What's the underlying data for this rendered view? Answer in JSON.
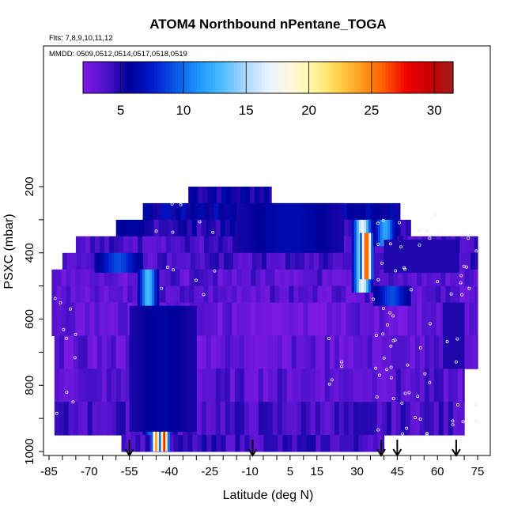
{
  "title": "ATOM4 Northbound nPentane_TOGA",
  "flights_label": "Flts: 7,8,9,10,11,12",
  "dates_label": "MMDD: 0509,0512,0514,0517,0518,0519",
  "chart_data": {
    "type": "heatmap",
    "xlabel": "Latitude (deg N)",
    "ylabel": "PSXC (mbar)",
    "x_ticks": [
      -85,
      -70,
      -55,
      -40,
      -25,
      -10,
      5,
      15,
      30,
      45,
      60,
      75
    ],
    "y_ticks": [
      200,
      400,
      600,
      800,
      1000
    ],
    "xlim": [
      -85,
      84
    ],
    "ylim": [
      1000,
      50
    ],
    "colorbar": {
      "ticks": [
        5,
        10,
        15,
        20,
        25,
        30
      ],
      "range": [
        2,
        31.5
      ],
      "colors": [
        "#7f1ae6",
        "#4f12cc",
        "#000099",
        "#0019cc",
        "#0a59e8",
        "#1e96ff",
        "#4dbbff",
        "#a8d8ff",
        "#e8f2ff",
        "#fffadc",
        "#fff5a0",
        "#ffd34d",
        "#ff9d1f",
        "#ff5d00",
        "#f00000",
        "#c80000",
        "#a01d1d"
      ]
    },
    "pressure_bands": [
      {
        "p": [
          200,
          250
        ],
        "lat": [
          -33,
          -2
        ],
        "value": 5.5
      },
      {
        "p": [
          250,
          300
        ],
        "lat": [
          -50,
          46
        ],
        "value": 6
      },
      {
        "p": [
          300,
          350
        ],
        "lat": [
          -60,
          50
        ],
        "value": 5
      },
      {
        "p": [
          350,
          400
        ],
        "lat": [
          -75,
          75
        ],
        "value": 4
      },
      {
        "p": [
          400,
          450
        ],
        "lat": [
          -80,
          75
        ],
        "value": 4
      },
      {
        "p": [
          450,
          500
        ],
        "lat": [
          -84,
          75
        ],
        "value": 3.5
      },
      {
        "p": [
          500,
          550
        ],
        "lat": [
          -84,
          75
        ],
        "value": 3.5
      },
      {
        "p": [
          550,
          650
        ],
        "lat": [
          -84,
          75
        ],
        "value": 3
      },
      {
        "p": [
          650,
          750
        ],
        "lat": [
          -83,
          75
        ],
        "value": 3.2
      },
      {
        "p": [
          750,
          850
        ],
        "lat": [
          -83,
          70
        ],
        "value": 3.5
      },
      {
        "p": [
          850,
          950
        ],
        "lat": [
          -83,
          70
        ],
        "value": 4
      },
      {
        "p": [
          950,
          1000
        ],
        "lat": [
          -58,
          40
        ],
        "value": 4.2
      }
    ],
    "features": [
      {
        "lat": [
          -68,
          -50
        ],
        "p": [
          400,
          460
        ],
        "value": 9
      },
      {
        "lat": [
          -52,
          -44
        ],
        "p": [
          450,
          560
        ],
        "value": 13
      },
      {
        "lat": [
          -50,
          -44
        ],
        "p": [
          560,
          950
        ],
        "value": 10
      },
      {
        "lat": [
          -47,
          -43
        ],
        "p": [
          900,
          1000
        ],
        "value": 24
      },
      {
        "lat": [
          -44,
          -40
        ],
        "p": [
          930,
          1000
        ],
        "value": 27
      },
      {
        "lat": [
          -55,
          -30
        ],
        "p": [
          560,
          940
        ],
        "value": 6
      },
      {
        "lat": [
          -15,
          25
        ],
        "p": [
          250,
          400
        ],
        "value": 6.5
      },
      {
        "lat": [
          28,
          36
        ],
        "p": [
          300,
          520
        ],
        "value": 17
      },
      {
        "lat": [
          31,
          36
        ],
        "p": [
          340,
          480
        ],
        "value": 27
      },
      {
        "lat": [
          36,
          45
        ],
        "p": [
          300,
          380
        ],
        "value": 12
      },
      {
        "lat": [
          36,
          50
        ],
        "p": [
          500,
          560
        ],
        "value": 9
      },
      {
        "lat": [
          40,
          68
        ],
        "p": [
          360,
          460
        ],
        "value": 5
      },
      {
        "lat": [
          62,
          70
        ],
        "p": [
          550,
          750
        ],
        "value": 5
      }
    ],
    "arrow_latitudes": [
      -55,
      -9,
      39,
      45,
      67
    ]
  }
}
